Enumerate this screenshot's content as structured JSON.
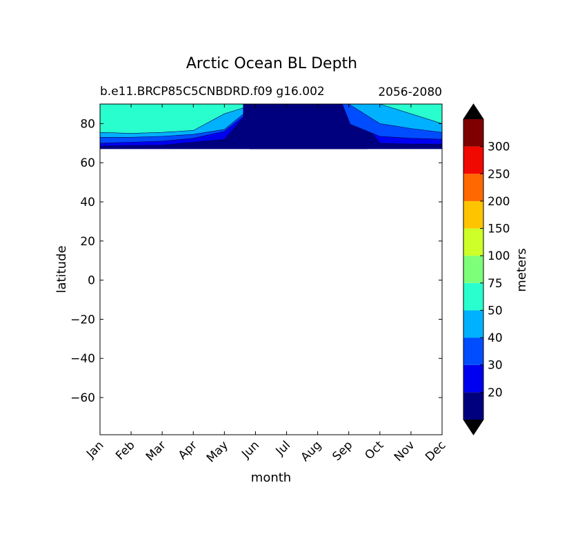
{
  "chart_data": {
    "type": "heatmap",
    "title": "Arctic Ocean BL Depth",
    "subtitle_left": "b.e11.BRCP85C5CNBDRD.f09 g16.002",
    "subtitle_right": "2056-2080",
    "xlabel": "month",
    "ylabel": "latitude",
    "x_categories": [
      "Jan",
      "Feb",
      "Mar",
      "Apr",
      "May",
      "Jun",
      "Jul",
      "Aug",
      "Sep",
      "Oct",
      "Nov",
      "Dec"
    ],
    "ylim": [
      -79,
      90
    ],
    "yticks": [
      80,
      60,
      40,
      20,
      0,
      -20,
      -40,
      -60
    ],
    "ytick_labels": [
      "80",
      "60",
      "40",
      "20",
      "0",
      "−20",
      "−40",
      "−60"
    ],
    "colorbar": {
      "label": "meters",
      "levels": [
        10,
        20,
        30,
        40,
        50,
        75,
        100,
        150,
        200,
        250,
        300,
        350
      ],
      "tick_labels": [
        "20",
        "30",
        "40",
        "50",
        "75",
        "100",
        "150",
        "200",
        "250",
        "300"
      ],
      "colors": [
        "#00007f",
        "#0000f1",
        "#004dff",
        "#00b1ff",
        "#29ffce",
        "#7dff7a",
        "#ceff29",
        "#ffc400",
        "#ff6800",
        "#f10800",
        "#7f0000"
      ],
      "extend": "both"
    },
    "data_latitude_range": [
      67,
      90
    ],
    "months_fractional_contour_bounds": {
      "description_none": "",
      "level_0_10_20": "deep blue band spans all months at 67-70N; expands to whole column Jun-Sep",
      "note": ""
    },
    "contours": [
      {
        "level": 20,
        "lat_top": [
          68.5,
          68.8,
          69.0,
          70.5,
          72.0,
          90,
          90,
          90,
          90,
          70.0,
          69.5,
          69.5
        ]
      },
      {
        "level": 30,
        "lat_top": [
          70.0,
          70.5,
          71.0,
          72.5,
          76.0,
          88.5,
          90,
          90,
          80.0,
          73.5,
          72.5,
          72.0
        ]
      },
      {
        "level": 40,
        "lat_top": [
          73.0,
          73.0,
          73.5,
          74.5,
          77.0,
          90,
          90,
          90,
          90,
          80.0,
          77.5,
          75.5
        ]
      },
      {
        "level": 50,
        "lat_top": [
          75.5,
          75.0,
          75.5,
          76.5,
          85.0,
          90,
          90,
          90,
          90,
          90,
          85.0,
          80.0
        ]
      }
    ]
  }
}
